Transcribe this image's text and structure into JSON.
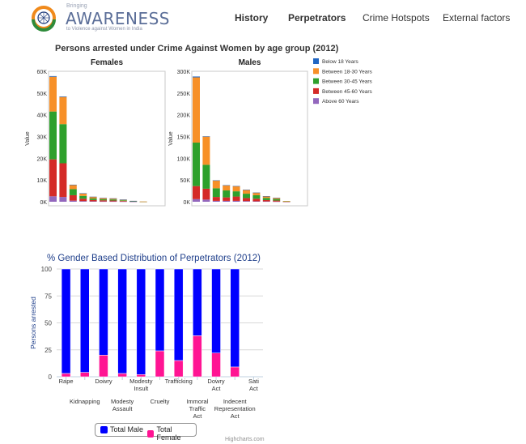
{
  "header": {
    "logo_small": "Bringing",
    "logo_big": "AWARENESS",
    "logo_tagline": "to Violence against Women in India",
    "nav": [
      {
        "label": "History"
      },
      {
        "label": "Perpetrators"
      },
      {
        "label": "Crime Hotspots"
      },
      {
        "label": "External factors"
      }
    ]
  },
  "colors": {
    "below18": "#2166c2",
    "b1830": "#f79028",
    "b3045": "#2ea02c",
    "b4560": "#d42a27",
    "above60": "#9367bd",
    "male": "#0000ff",
    "female": "#ff1493",
    "hc_title": "#1f3f8b"
  },
  "chart_data": [
    {
      "type": "bar",
      "title": "Persons arrested under Crime Against Women by age group (2012)",
      "facets": [
        {
          "name": "Females",
          "ylabel": "Value",
          "yticks": [
            "0K",
            "10K",
            "20K",
            "30K",
            "40K",
            "50K",
            "60K"
          ],
          "ylim": [
            0,
            60000
          ],
          "bars": [
            [
              300,
              16000,
              22000,
              17000,
              2500
            ],
            [
              250,
              12500,
              18000,
              15500,
              2200
            ],
            [
              50,
              2000,
              2800,
              2500,
              500
            ],
            [
              20,
              1200,
              1300,
              1100,
              300
            ],
            [
              10,
              800,
              700,
              600,
              200
            ],
            [
              10,
              600,
              500,
              500,
              150
            ],
            [
              10,
              500,
              500,
              400,
              150
            ],
            [
              5,
              350,
              300,
              250,
              100
            ],
            [
              5,
              150,
              100,
              100,
              50
            ],
            [
              0,
              30,
              30,
              20,
              10
            ]
          ]
        },
        {
          "name": "Males",
          "ylabel": "Value",
          "yticks": [
            "0K",
            "50K",
            "100K",
            "150K",
            "200K",
            "250K",
            "300K"
          ],
          "ylim": [
            0,
            300000
          ],
          "bars": [
            [
              2000,
              150000,
              100000,
              30000,
              6000
            ],
            [
              500,
              65000,
              55000,
              25000,
              5000
            ],
            [
              200,
              18000,
              20000,
              9000,
              2000
            ],
            [
              100,
              12000,
              16000,
              8000,
              2000
            ],
            [
              100,
              12000,
              12000,
              10000,
              2000
            ],
            [
              50,
              9000,
              10000,
              7000,
              1500
            ],
            [
              50,
              6000,
              8000,
              6000,
              1000
            ],
            [
              20,
              4000,
              5000,
              3000,
              800
            ],
            [
              10,
              3000,
              3500,
              2200,
              500
            ],
            [
              0,
              500,
              600,
              400,
              100
            ]
          ]
        }
      ],
      "legend": [
        {
          "label": "Below 18 Years",
          "color_key": "below18"
        },
        {
          "label": "Between 18-30 Years",
          "color_key": "b1830"
        },
        {
          "label": "Between 30-45 Years",
          "color_key": "b3045"
        },
        {
          "label": "Between 45-60 Years",
          "color_key": "b4560"
        },
        {
          "label": "Above 60 Years",
          "color_key": "above60"
        }
      ]
    },
    {
      "type": "bar",
      "stacked": "percent",
      "title": "% Gender Based Distribution of Perpetrators (2012)",
      "ylabel": "Persons arrested",
      "yticks": [
        "0",
        "25",
        "50",
        "75",
        "100"
      ],
      "ylim": [
        0,
        100
      ],
      "categories": [
        "Rape",
        "Kidnapping",
        "Dowry",
        "Modesty Assault",
        "Modesty Insult",
        "Cruelty",
        "Trafficking",
        "Immoral Traffic Act",
        "Dowry Act",
        "Indecent Representation Act",
        "Sati Act"
      ],
      "series": [
        {
          "name": "Total Male",
          "values": [
            97,
            96,
            80,
            97,
            98,
            76,
            85,
            62,
            78,
            91,
            0
          ]
        },
        {
          "name": "Total Female",
          "values": [
            3,
            4,
            20,
            3,
            2,
            24,
            15,
            38,
            22,
            9,
            0
          ]
        }
      ],
      "legend": [
        {
          "label": "Total Male"
        },
        {
          "label": "Total Female"
        }
      ],
      "credits": "Highcharts.com"
    }
  ]
}
